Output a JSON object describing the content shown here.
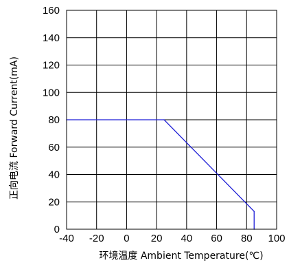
{
  "chart_data": {
    "type": "line",
    "xlabel": "环境温度  Ambient Temperature(℃)",
    "ylabel": "正向电流 Forward Current(mA)",
    "xlim": [
      -40,
      100
    ],
    "ylim": [
      0,
      160
    ],
    "x_ticks": [
      -40,
      -20,
      0,
      20,
      40,
      60,
      80,
      100
    ],
    "y_ticks": [
      0,
      20,
      40,
      60,
      80,
      100,
      120,
      140,
      160
    ],
    "x_tick_labels": [
      "-40",
      "-20",
      "0",
      "20",
      "40",
      "60",
      "80",
      "100"
    ],
    "y_tick_labels": [
      "0",
      "20",
      "40",
      "60",
      "80",
      "100",
      "120",
      "140",
      "160"
    ],
    "grid": true,
    "series": [
      {
        "color": "#1f1fd6",
        "x": [
          -40,
          25,
          85,
          85
        ],
        "y": [
          80,
          80,
          13,
          0
        ]
      }
    ]
  }
}
